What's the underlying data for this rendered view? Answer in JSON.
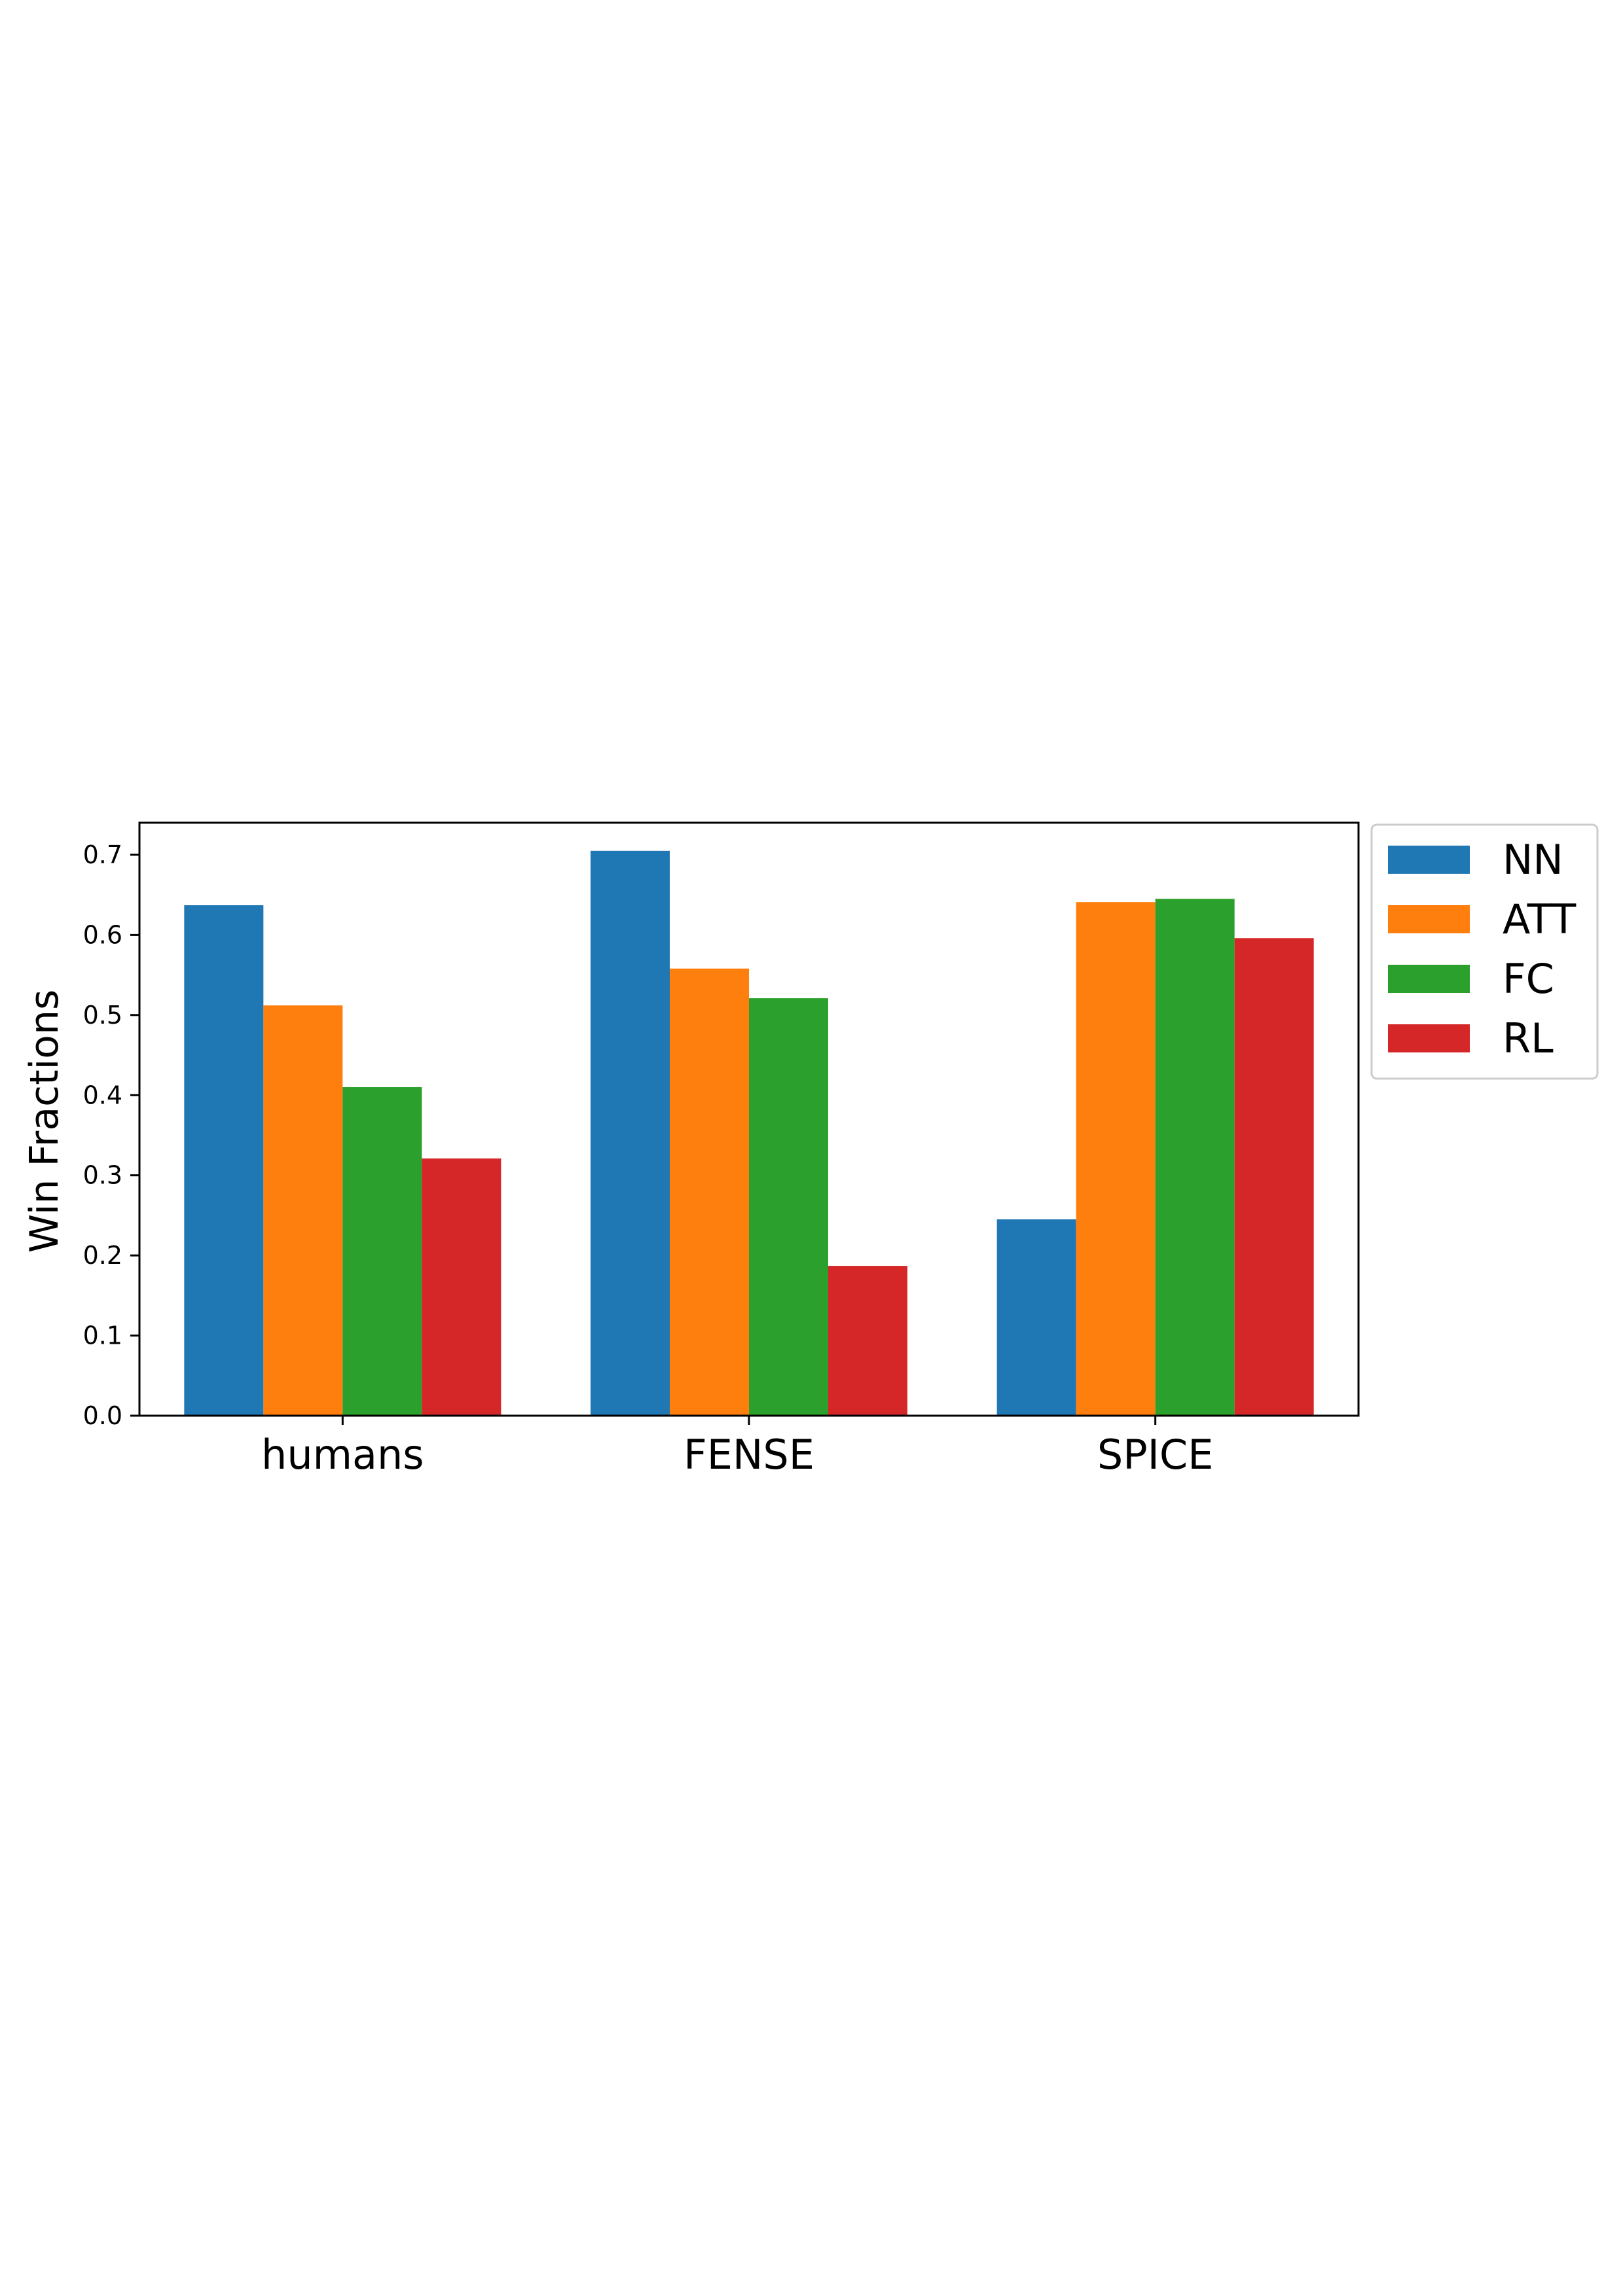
{
  "chart_data": {
    "type": "bar",
    "title": "",
    "xlabel": "",
    "ylabel": "Win Fractions",
    "categories": [
      "humans",
      "FENSE",
      "SPICE"
    ],
    "series": [
      {
        "name": "NN",
        "color": "#1f77b4",
        "values": [
          0.637,
          0.705,
          0.245
        ]
      },
      {
        "name": "ATT",
        "color": "#ff7f0e",
        "values": [
          0.512,
          0.558,
          0.641
        ]
      },
      {
        "name": "FC",
        "color": "#2ca02c",
        "values": [
          0.41,
          0.521,
          0.645
        ]
      },
      {
        "name": "RL",
        "color": "#d62728",
        "values": [
          0.321,
          0.187,
          0.596
        ]
      }
    ],
    "ylim": [
      0,
      0.74
    ],
    "yticks": [
      0.0,
      0.1,
      0.2,
      0.3,
      0.4,
      0.5,
      0.6,
      0.7
    ],
    "ytick_labels": [
      "0.0",
      "0.1",
      "0.2",
      "0.3",
      "0.4",
      "0.5",
      "0.6",
      "0.7"
    ],
    "grid": false,
    "legend_position": "outside-top-right"
  }
}
